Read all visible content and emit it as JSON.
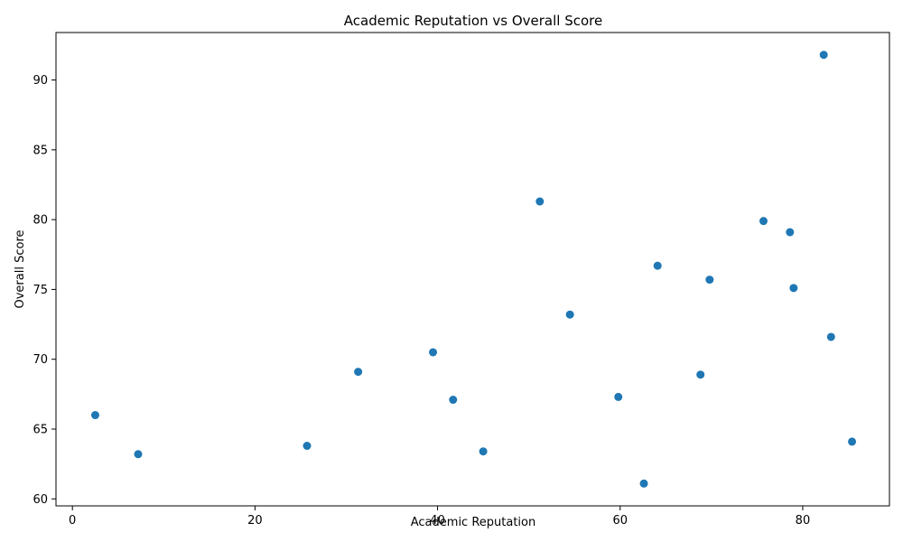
{
  "chart_data": {
    "type": "scatter",
    "title": "Academic Reputation vs Overall Score",
    "xlabel": "Academic Reputation",
    "ylabel": "Overall Score",
    "xlim": [
      -1.8,
      89.5
    ],
    "ylim": [
      59.5,
      93.4
    ],
    "xticks": [
      0,
      20,
      40,
      60,
      80
    ],
    "yticks": [
      60,
      65,
      70,
      75,
      80,
      85,
      90
    ],
    "grid": false,
    "marker_color": "#1f77b4",
    "series": [
      {
        "points": [
          {
            "x": 82.3,
            "y": 91.8
          },
          {
            "x": 51.2,
            "y": 81.3
          },
          {
            "x": 75.7,
            "y": 79.9
          },
          {
            "x": 78.6,
            "y": 79.1
          },
          {
            "x": 64.1,
            "y": 76.7
          },
          {
            "x": 69.8,
            "y": 75.7
          },
          {
            "x": 79.0,
            "y": 75.1
          },
          {
            "x": 54.5,
            "y": 73.2
          },
          {
            "x": 83.1,
            "y": 71.6
          },
          {
            "x": 39.5,
            "y": 70.5
          },
          {
            "x": 31.3,
            "y": 69.1
          },
          {
            "x": 68.8,
            "y": 68.9
          },
          {
            "x": 59.8,
            "y": 67.3
          },
          {
            "x": 41.7,
            "y": 67.1
          },
          {
            "x": 2.5,
            "y": 66.0
          },
          {
            "x": 85.4,
            "y": 64.1
          },
          {
            "x": 25.7,
            "y": 63.8
          },
          {
            "x": 45.0,
            "y": 63.4
          },
          {
            "x": 7.2,
            "y": 63.2
          },
          {
            "x": 62.6,
            "y": 61.1
          }
        ]
      }
    ]
  }
}
